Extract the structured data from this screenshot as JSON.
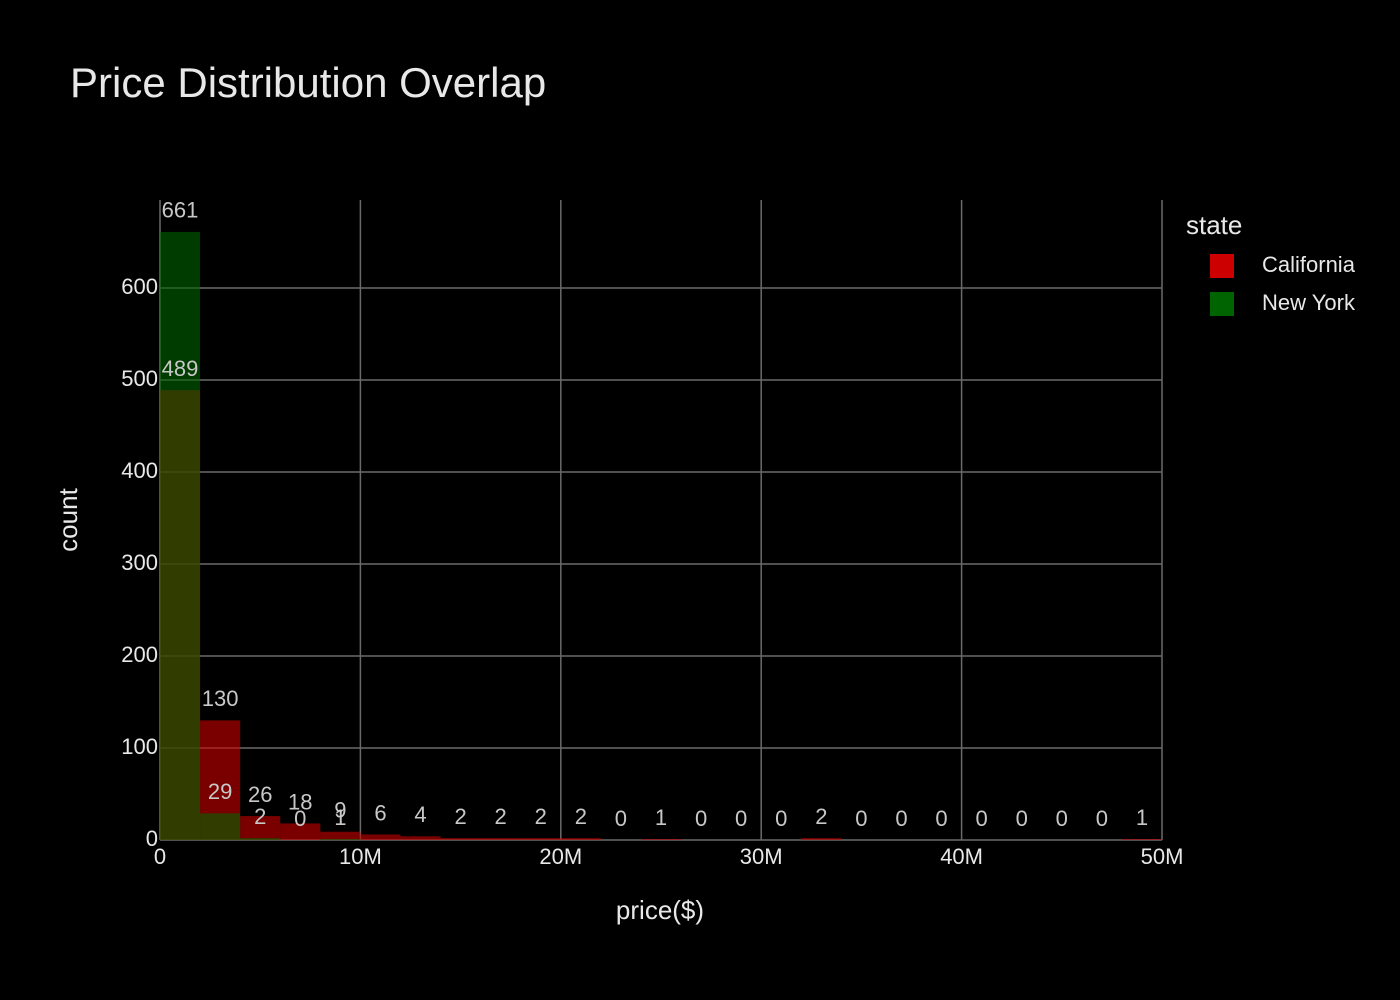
{
  "chart_data": {
    "type": "histogram",
    "title": "Price Distribution Overlap",
    "x_label": "price($)",
    "y_label": "count",
    "legend_title": "state",
    "bins": [
      0,
      2000000,
      4000000,
      6000000,
      8000000,
      10000000,
      12000000,
      14000000,
      16000000,
      18000000,
      20000000,
      22000000,
      24000000,
      26000000,
      28000000,
      30000000,
      32000000,
      34000000,
      36000000,
      38000000,
      40000000,
      42000000,
      44000000,
      46000000,
      48000000,
      50000000
    ],
    "series": [
      {
        "name": "California",
        "color": "#cc0000",
        "values": [
          489,
          130,
          26,
          18,
          9,
          6,
          4,
          2,
          2,
          2,
          2,
          0,
          1,
          0,
          0,
          0,
          2,
          0,
          0,
          0,
          0,
          0,
          0,
          0,
          1
        ]
      },
      {
        "name": "New York",
        "color": "#006400",
        "values": [
          661,
          29,
          2,
          0,
          1,
          null,
          null,
          null,
          null,
          null,
          null,
          null,
          null,
          null,
          null,
          null,
          null,
          null,
          null,
          null,
          null,
          null,
          null,
          null,
          null
        ]
      }
    ],
    "opacity": 0.6,
    "xlim": [
      0,
      50000000
    ],
    "xticks": [
      0,
      {
        "value": 10000000,
        "label": "10M"
      },
      {
        "value": 20000000,
        "label": "20M"
      },
      {
        "value": 30000000,
        "label": "30M"
      },
      {
        "value": 40000000,
        "label": "40M"
      },
      {
        "value": 50000000,
        "label": "50M"
      }
    ],
    "ylim": [
      0,
      695.7
    ],
    "yticks": [
      0,
      100,
      200,
      300,
      400,
      500,
      600
    ],
    "grid": true
  }
}
